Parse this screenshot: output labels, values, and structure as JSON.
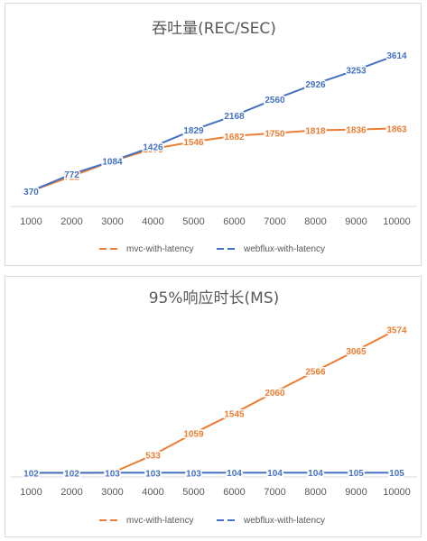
{
  "chart_data": [
    {
      "type": "line",
      "title": "吞吐量(REC/SEC)",
      "categories": [
        "1000",
        "2000",
        "3000",
        "4000",
        "5000",
        "6000",
        "7000",
        "8000",
        "9000",
        "10000"
      ],
      "ylim": [
        0,
        4000
      ],
      "legend_position": "bottom",
      "grid": false,
      "series": [
        {
          "name": "mvc-with-latency",
          "color": "#ED7D31",
          "values": [
            370,
            722,
            1084,
            1375,
            1546,
            1682,
            1750,
            1818,
            1836,
            1863
          ]
        },
        {
          "name": "webflux-with-latency",
          "color": "#4472C4",
          "values": [
            370,
            772,
            1084,
            1426,
            1829,
            2168,
            2560,
            2926,
            3253,
            3614
          ]
        }
      ]
    },
    {
      "type": "line",
      "title": "95%响应时长(MS)",
      "categories": [
        "1000",
        "2000",
        "3000",
        "4000",
        "5000",
        "6000",
        "7000",
        "8000",
        "9000",
        "10000"
      ],
      "ylim": [
        0,
        4000
      ],
      "legend_position": "bottom",
      "grid": false,
      "series": [
        {
          "name": "mvc-with-latency",
          "color": "#ED7D31",
          "values": [
            102,
            102,
            103,
            533,
            1059,
            1545,
            2060,
            2566,
            3065,
            3574
          ]
        },
        {
          "name": "webflux-with-latency",
          "color": "#4472C4",
          "values": [
            102,
            102,
            103,
            103,
            103,
            104,
            104,
            104,
            105,
            105
          ]
        }
      ]
    }
  ]
}
